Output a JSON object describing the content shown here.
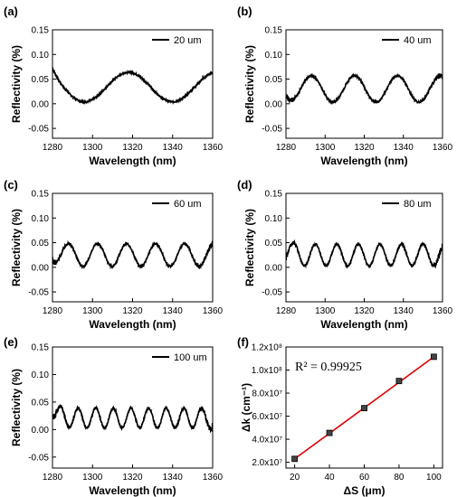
{
  "chart_data": [
    {
      "type": "line",
      "panel": "(a)",
      "legend": "20 um",
      "xlabel": "Wavelength (nm)",
      "ylabel": "Reflectivity (%)",
      "xlim": [
        1280,
        1360
      ],
      "ylim": [
        -0.07,
        0.15
      ],
      "xticks": [
        "1280",
        "1300",
        "1320",
        "1340",
        "1360"
      ],
      "yticks": [
        "-0.05",
        "0.00",
        "0.05",
        "0.10",
        "0.15"
      ],
      "series": [
        {
          "name": "20 um",
          "period_nm": 44,
          "mean": 0.034,
          "amplitude": 0.03,
          "peak_nm": 1318,
          "noise": 0.003,
          "edge_rise": 0.02,
          "x": [
            1280,
            1290,
            1300,
            1310,
            1318,
            1330,
            1340,
            1350,
            1360
          ],
          "y": [
            0.075,
            0.012,
            0.02,
            0.055,
            0.064,
            0.028,
            0.004,
            0.04,
            0.068
          ]
        }
      ]
    },
    {
      "type": "line",
      "panel": "(b)",
      "legend": "40 um",
      "xlabel": "Wavelength (nm)",
      "ylabel": "Reflectivity (%)",
      "xlim": [
        1280,
        1360
      ],
      "ylim": [
        -0.07,
        0.15
      ],
      "xticks": [
        "1280",
        "1300",
        "1320",
        "1340",
        "1360"
      ],
      "yticks": [
        "-0.05",
        "0.00",
        "0.05",
        "0.10",
        "0.15"
      ],
      "series": [
        {
          "name": "40 um",
          "period_nm": 22,
          "mean": 0.03,
          "amplitude": 0.027,
          "peak_nm": 1293,
          "noise": 0.004,
          "edge_rise": 0.01,
          "x": [
            1282,
            1293,
            1304,
            1315,
            1326,
            1337,
            1348,
            1359
          ],
          "y": [
            0.01,
            0.058,
            0.004,
            0.056,
            0.004,
            0.056,
            0.004,
            0.058
          ]
        }
      ]
    },
    {
      "type": "line",
      "panel": "(c)",
      "legend": "60 um",
      "xlabel": "Wavelength (nm)",
      "ylabel": "Reflectivity (%)",
      "xlim": [
        1280,
        1360
      ],
      "ylim": [
        -0.07,
        0.15
      ],
      "xticks": [
        "1280",
        "1300",
        "1320",
        "1340",
        "1360"
      ],
      "yticks": [
        "-0.05",
        "0.00",
        "0.05",
        "0.10",
        "0.15"
      ],
      "series": [
        {
          "name": "60 um",
          "period_nm": 14.5,
          "mean": 0.025,
          "amplitude": 0.023,
          "peak_nm": 1288,
          "noise": 0.004,
          "edge_rise": 0.012,
          "x": [
            1288,
            1295,
            1302,
            1310,
            1317,
            1324,
            1331,
            1339,
            1346,
            1353
          ],
          "y": [
            0.06,
            0.002,
            0.048,
            0.002,
            0.048,
            0.002,
            0.048,
            0.002,
            0.048,
            0.002
          ]
        }
      ]
    },
    {
      "type": "line",
      "panel": "(d)",
      "legend": "80 um",
      "xlabel": "Wavelength (nm)",
      "ylabel": "Reflectivity (%)",
      "xlim": [
        1280,
        1360
      ],
      "ylim": [
        -0.07,
        0.15
      ],
      "xticks": [
        "1280",
        "1300",
        "1320",
        "1340",
        "1360"
      ],
      "yticks": [
        "-0.05",
        "0.00",
        "0.05",
        "0.10",
        "0.15"
      ],
      "series": [
        {
          "name": "80 um",
          "period_nm": 11,
          "mean": 0.025,
          "amplitude": 0.022,
          "peak_nm": 1284,
          "noise": 0.004,
          "edge_rise": 0.012,
          "x": [
            1284,
            1289.5,
            1295,
            1300.5,
            1306,
            1311.5,
            1317,
            1322.5,
            1328,
            1333.5,
            1339
          ],
          "y": [
            0.062,
            0.003,
            0.047,
            0.003,
            0.047,
            0.003,
            0.047,
            0.003,
            0.047,
            0.003,
            0.047
          ]
        }
      ]
    },
    {
      "type": "line",
      "panel": "(e)",
      "legend": "100 um",
      "xlabel": "Wavelength (nm)",
      "ylabel": "Reflectivity (%)",
      "xlim": [
        1280,
        1360
      ],
      "ylim": [
        -0.07,
        0.15
      ],
      "xticks": [
        "1280",
        "1300",
        "1320",
        "1340",
        "1360"
      ],
      "yticks": [
        "-0.05",
        "0.00",
        "0.05",
        "0.10",
        "0.15"
      ],
      "series": [
        {
          "name": "100 um",
          "period_nm": 8.8,
          "mean": 0.021,
          "amplitude": 0.018,
          "peak_nm": 1284,
          "noise": 0.004,
          "edge_rise": 0.018,
          "x": [
            1284,
            1288.4,
            1292.8,
            1297.2,
            1301.6,
            1306,
            1310.4,
            1314.8
          ],
          "y": [
            0.055,
            0.003,
            0.039,
            0.003,
            0.039,
            0.003,
            0.039,
            0.003
          ]
        }
      ]
    },
    {
      "type": "scatter",
      "panel": "(f)",
      "xlabel": "ΔS (μm)",
      "ylabel": "Δk (cm⁻¹)",
      "annotation": "R² = 0.99925",
      "xlim": [
        15,
        105
      ],
      "ylim": [
        15000000,
        120000000
      ],
      "xticks": [
        "20",
        "40",
        "60",
        "80",
        "100"
      ],
      "yticks": [
        "2.0x10⁷",
        "4.0x10⁷",
        "6.0x10⁷",
        "8.0x10⁷",
        "1.0x10⁸",
        "1.2x10⁸"
      ],
      "x": [
        20,
        40,
        60,
        80,
        100
      ],
      "y": [
        23000000,
        45500000,
        67000000,
        90500000,
        111500000
      ],
      "fit": {
        "x": [
          20,
          100
        ],
        "y": [
          23000000,
          111500000
        ],
        "color": "#e00000"
      },
      "marker_color": "#000000"
    }
  ]
}
